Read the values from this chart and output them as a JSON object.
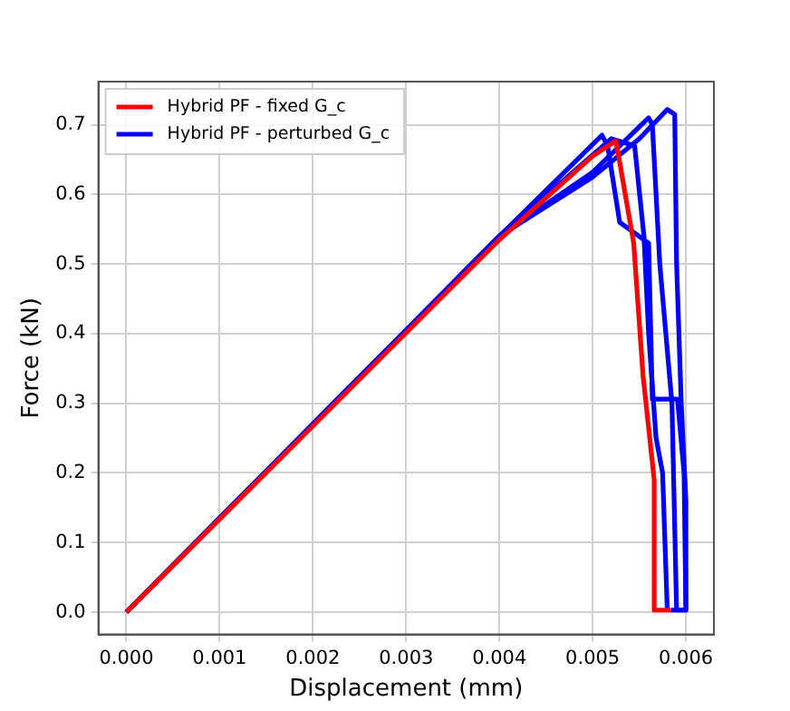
{
  "chart_data": {
    "type": "line",
    "xlabel": "Displacement (mm)",
    "ylabel": "Force (kN)",
    "xlim": [
      -0.0003,
      0.0063
    ],
    "xticks": [
      {
        "value": 0,
        "label": "0.000"
      },
      {
        "value": 0.001,
        "label": "0.001"
      },
      {
        "value": 0.002,
        "label": "0.002"
      },
      {
        "value": 0.003,
        "label": "0.003"
      },
      {
        "value": 0.004,
        "label": "0.004"
      },
      {
        "value": 0.005,
        "label": "0.005"
      },
      {
        "value": 0.006,
        "label": "0.006"
      }
    ],
    "ylim": [
      -0.032,
      0.762
    ],
    "yticks": [
      {
        "value": 0,
        "label": "0.0"
      },
      {
        "value": 0.1,
        "label": "0.1"
      },
      {
        "value": 0.2,
        "label": "0.2"
      },
      {
        "value": 0.3,
        "label": "0.3"
      },
      {
        "value": 0.4,
        "label": "0.4"
      },
      {
        "value": 0.5,
        "label": "0.5"
      },
      {
        "value": 0.6,
        "label": "0.6"
      },
      {
        "value": 0.7,
        "label": "0.7"
      }
    ],
    "grid": true,
    "legend": "top left",
    "marker": "none",
    "line_style": "solid",
    "series": [
      {
        "name": "Hybrid PF - fixed G_c",
        "color": "#ff0000",
        "x": [
          0,
          0.004,
          0.005,
          0.00525,
          0.00544,
          0.00554,
          0.00566,
          0.00566,
          0.00584
        ],
        "values": [
          0,
          0.535,
          0.655,
          0.677,
          0.53,
          0.34,
          0.19,
          0.003,
          0.003
        ]
      },
      {
        "name": "Hybrid PF - perturbed G_c",
        "color": "#0000ff",
        "x": [
          0,
          0.004,
          0.005,
          0.0055,
          0.0058,
          0.00588,
          0.0059,
          0.00595,
          0.006,
          0.006,
          0.00584
        ],
        "values": [
          0,
          0.54,
          0.625,
          0.68,
          0.722,
          0.715,
          0.5,
          0.3,
          0.16,
          0.003,
          0.003
        ]
      },
      {
        "color": "#0000ff",
        "x": [
          0,
          0.004,
          0.005,
          0.0056,
          0.00564,
          0.00572,
          0.00585,
          0.0059,
          0.006
        ],
        "values": [
          0,
          0.54,
          0.632,
          0.71,
          0.7,
          0.5,
          0.3,
          0.003,
          0.003
        ]
      },
      {
        "color": "#0000ff",
        "x": [
          0,
          0.004,
          0.0051,
          0.00516,
          0.00529,
          0.0056,
          0.00564,
          0.00591,
          0.00598,
          0.006
        ],
        "values": [
          0,
          0.54,
          0.685,
          0.67,
          0.56,
          0.53,
          0.306,
          0.306,
          0.2,
          0.003
        ]
      },
      {
        "color": "#0000ff",
        "x": [
          0,
          0.004,
          0.0052,
          0.00545,
          0.00555,
          0.0056,
          0.00568,
          0.00575,
          0.0058
        ],
        "values": [
          0,
          0.54,
          0.68,
          0.67,
          0.54,
          0.4,
          0.25,
          0.2,
          0.003
        ]
      }
    ]
  }
}
